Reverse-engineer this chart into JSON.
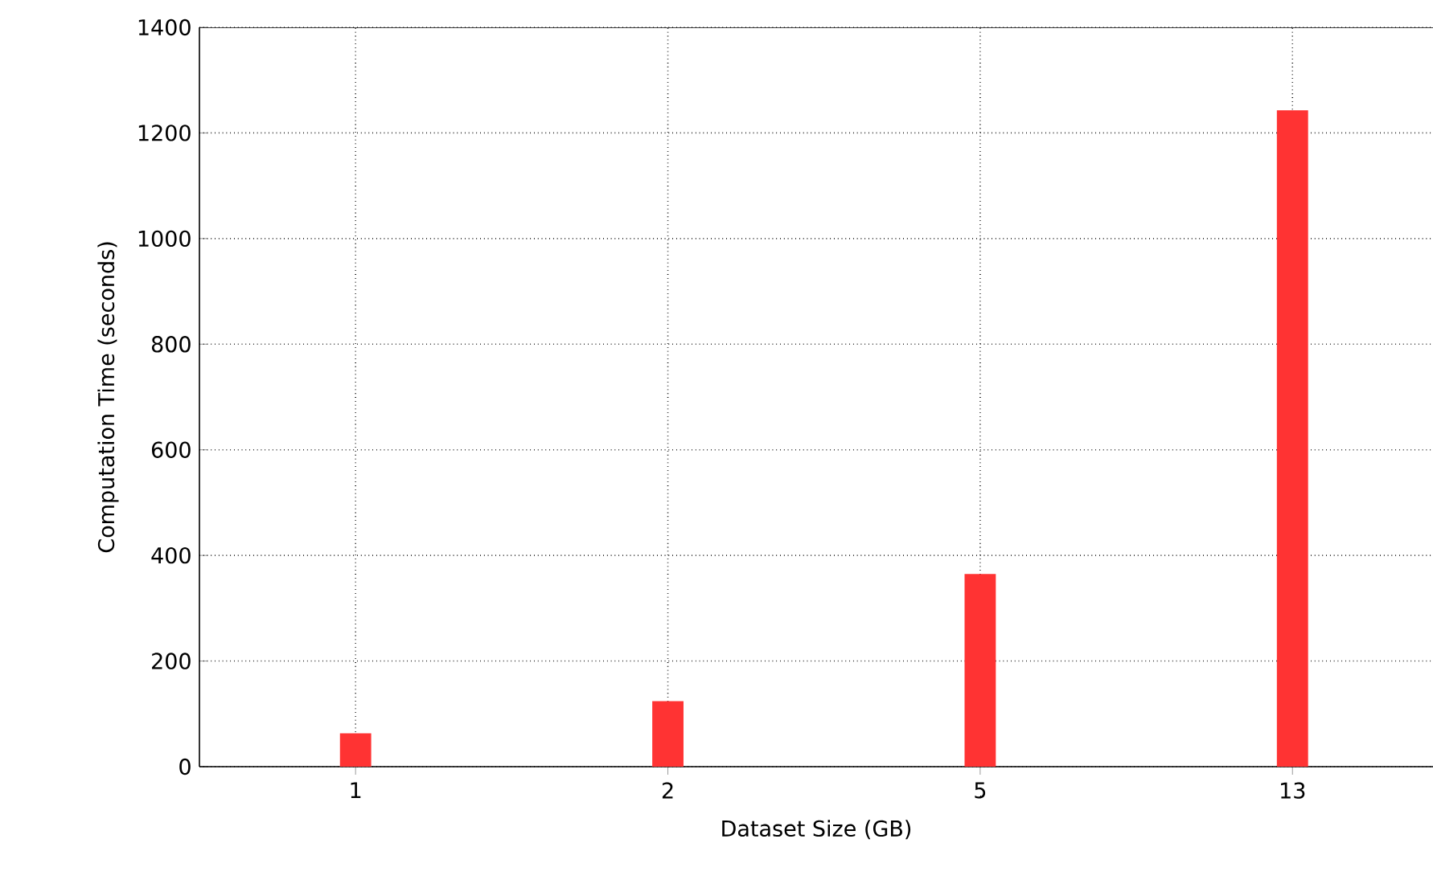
{
  "chart_data": {
    "type": "bar",
    "xlabel": "Dataset Size (GB)",
    "ylabel": "Computation Time (seconds)",
    "categories": [
      "1",
      "2",
      "5",
      "13"
    ],
    "values": [
      63,
      124,
      365,
      1243
    ],
    "color": "#ff3333",
    "ylim": [
      0,
      1400
    ],
    "yticks": [
      0,
      200,
      400,
      600,
      800,
      1000,
      1200,
      1400
    ],
    "grid": true
  }
}
